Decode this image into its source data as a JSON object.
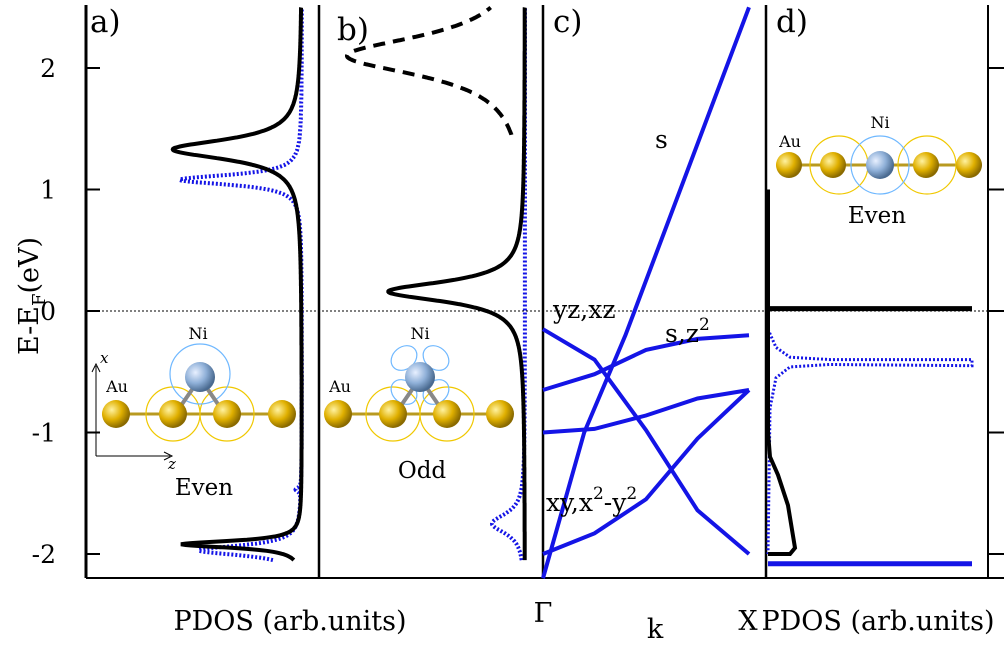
{
  "y_axis": {
    "label_main": "E-E",
    "label_sub": "F",
    "label_tail": "(eV)",
    "ticks": [
      "2",
      "1",
      "0",
      "-1",
      "-2"
    ],
    "range": [
      -2.2,
      2.5
    ]
  },
  "panels": {
    "a": {
      "label": "a)",
      "xlabel": "PDOS (arb.units)",
      "element1": "Ni",
      "element2": "Au",
      "axis_x": "x",
      "axis_z": "z",
      "caption": "Even"
    },
    "b": {
      "label": "b)",
      "element1": "Ni",
      "element2": "Au",
      "caption": "Odd"
    },
    "c": {
      "label": "c)",
      "kstart": "Γ",
      "kmid": "k",
      "kend": "X",
      "band_s": "s",
      "band_yz": "yz,xz",
      "band_sz2": "s,z",
      "band_sz2_sup": "2",
      "band_xy": "xy,x",
      "band_xy_sup": "2",
      "band_xy_mid": "-y",
      "band_xy_sup2": "2"
    },
    "d": {
      "label": "d)",
      "xlabel": "PDOS (arb.units)",
      "element1": "Ni",
      "element2": "Au",
      "caption": "Even"
    }
  },
  "colors": {
    "total": "#000000",
    "projected": "#1414e6",
    "gold": "#e0b000",
    "nickel": "#8fb0d8",
    "orbit": "#f0c800"
  },
  "chart_data": [
    {
      "type": "line",
      "panel": "a",
      "xlabel": "PDOS (arb.units)",
      "ylabel": "E-E_F(eV)",
      "ylim": [
        -2.2,
        2.5
      ],
      "series": [
        {
          "style": "solid",
          "color": "#000000",
          "peaks": [
            {
              "energy": 1.33,
              "height": 0.95
            },
            {
              "energy": -1.92,
              "height": 0.88
            }
          ]
        },
        {
          "style": "dotted",
          "color": "#1414e6",
          "peaks": [
            {
              "energy": 1.08,
              "height": 0.9
            },
            {
              "energy": -1.97,
              "height": 0.76
            },
            {
              "energy": -1.47,
              "height": 0.04
            }
          ]
        }
      ]
    },
    {
      "type": "line",
      "panel": "b",
      "ylim": [
        -2.2,
        2.5
      ],
      "series": [
        {
          "style": "solid",
          "color": "#000000",
          "peaks": [
            {
              "energy": 0.16,
              "height": 0.95
            }
          ]
        },
        {
          "style": "dashed",
          "color": "#000000",
          "peaks": [
            {
              "energy": 2.1,
              "height": 1.0
            }
          ]
        },
        {
          "style": "dotted",
          "color": "#1414e6",
          "peaks": [
            {
              "energy": -1.75,
              "height": 0.6
            }
          ]
        }
      ]
    },
    {
      "type": "line",
      "panel": "c",
      "xlabel": "k",
      "xrange": [
        "Γ",
        "X"
      ],
      "ylim": [
        -2.2,
        2.5
      ],
      "series": [
        {
          "label": "s",
          "x": [
            0,
            0.2,
            0.4,
            0.6,
            0.8,
            1.0
          ],
          "y": [
            -2.2,
            -1.0,
            -0.2,
            0.7,
            1.6,
            2.5
          ]
        },
        {
          "label": "yz,xz",
          "x": [
            0,
            0.25,
            0.5,
            0.75,
            1.0
          ],
          "y": [
            -0.15,
            -0.4,
            -0.98,
            -1.64,
            -2.0
          ]
        },
        {
          "label": "yz,xz",
          "x": [
            0,
            0.25,
            0.5,
            0.75,
            1.0
          ],
          "y": [
            -0.65,
            -0.52,
            -0.32,
            -0.23,
            -0.2
          ]
        },
        {
          "label": "s,z2",
          "x": [
            0,
            0.25,
            0.5,
            0.75,
            1.0
          ],
          "y": [
            -1.0,
            -0.97,
            -0.86,
            -0.72,
            -0.65
          ]
        },
        {
          "label": "xy,x2-y2",
          "x": [
            0,
            0.25,
            0.5,
            0.75,
            1.0
          ],
          "y": [
            -2.0,
            -1.83,
            -1.55,
            -1.05,
            -0.65
          ]
        }
      ]
    },
    {
      "type": "line",
      "panel": "d",
      "xlabel": "PDOS (arb.units)",
      "ylim": [
        -2.2,
        2.5
      ],
      "series": [
        {
          "style": "solid",
          "color": "#000000",
          "features": [
            {
              "energy": 0.02,
              "type": "flat band"
            },
            {
              "energy_range": [
                -2.0,
                1.0
              ],
              "type": "broad"
            }
          ]
        },
        {
          "style": "dotted",
          "color": "#1414e6",
          "features": [
            {
              "energy": -0.42,
              "type": "flat band"
            }
          ]
        },
        {
          "style": "solid",
          "color": "#1414e6",
          "features": [
            {
              "energy": -2.08,
              "type": "flat band"
            }
          ]
        }
      ]
    }
  ]
}
